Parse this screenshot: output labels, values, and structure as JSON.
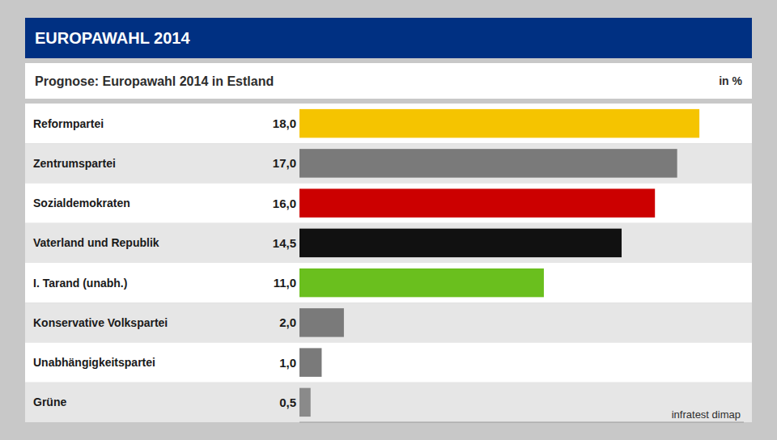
{
  "chart_data": {
    "type": "bar",
    "orientation": "horizontal",
    "title": "EUROPAWAHL 2014",
    "subtitle": "Prognose: Europawahl 2014 in Estland",
    "xlabel": "in %",
    "annotations": [
      "infratest dimap"
    ],
    "categories": [
      "Reformpartei",
      "Zentrumspartei",
      "Sozialdemokraten",
      "Vaterland und Republik",
      "I. Tarand (unabh.)",
      "Konservative Volkspartei",
      "Unabhängigkeitspartei",
      "Grüne"
    ],
    "values": [
      18.0,
      17.0,
      16.0,
      14.5,
      11.0,
      2.0,
      1.0,
      0.5
    ],
    "value_labels": [
      "18,0",
      "17,0",
      "16,0",
      "14,5",
      "11,0",
      "2,0",
      "1,0",
      "0,5"
    ],
    "colors": [
      "#f5c400",
      "#7a7a7a",
      "#cc0000",
      "#111111",
      "#6abf1e",
      "#7a7a7a",
      "#7a7a7a",
      "#8a8a8a"
    ],
    "xlim": [
      0,
      20
    ],
    "data_labels": true,
    "tick_labels": false,
    "grid": false
  }
}
